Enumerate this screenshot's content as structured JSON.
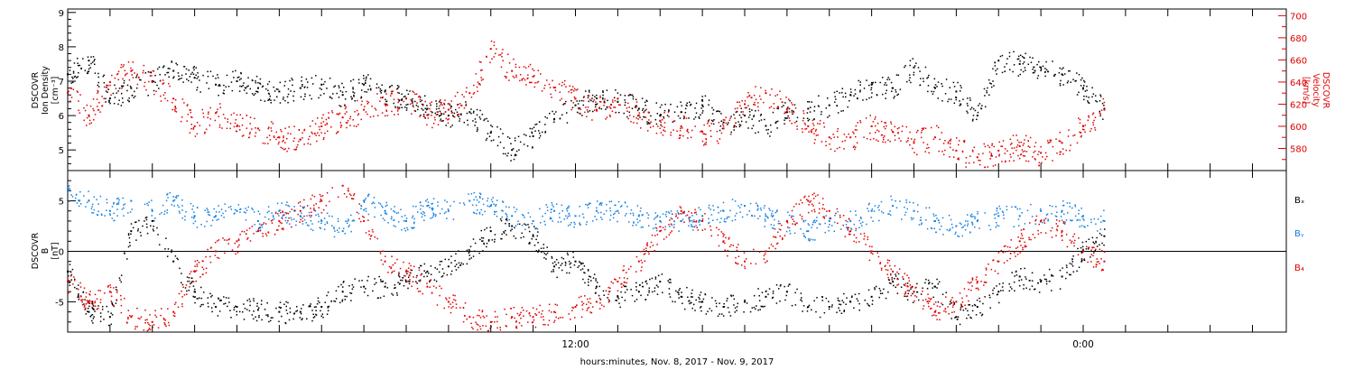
{
  "figure": {
    "xaxis_title": "hours:minutes, Nov.  8, 2017 - Nov.  9, 2017",
    "colors": {
      "black": "#000000",
      "red": "#e00000",
      "blue": "#1480e0"
    },
    "panels": {
      "top": {
        "left_label": [
          "DSCOVR",
          "Ion Density",
          "[cm⁻³]"
        ],
        "right_label": [
          "DSCOVR",
          "Velocity",
          "[km/s]"
        ]
      },
      "bottom": {
        "left_label": [
          "DSCOVR",
          "B",
          "[nT]"
        ],
        "legend": [
          "Bₓ",
          "Bᵧ",
          "B₄"
        ]
      }
    }
  },
  "chart_data": [
    {
      "type": "scatter",
      "title": "",
      "xlabel": "hours:minutes, Nov.  8, 2017 - Nov.  9, 2017",
      "x_unit": "hours since 2017-11-08 00:00",
      "xlim": [
        0,
        28.8
      ],
      "x_ticks": [
        {
          "value": 12,
          "label": "12:00"
        },
        {
          "value": 24,
          "label": "0:00"
        }
      ],
      "ylabel": "DSCOVR Ion Density [cm⁻³]",
      "ylim": [
        4.4,
        9.1
      ],
      "y_ticks": [
        5,
        6,
        7,
        8,
        9
      ],
      "y2label": "DSCOVR Velocity [km/s]",
      "y2lim": [
        560,
        706
      ],
      "y2_ticks": [
        580,
        600,
        620,
        640,
        660,
        680,
        700
      ],
      "series": [
        {
          "name": "",
          "axis": "left",
          "color": "#000000",
          "x": [
            0,
            0.5,
            1.0,
            1.5,
            2.0,
            2.5,
            3.0,
            3.5,
            4.0,
            4.5,
            5.0,
            5.5,
            6.0,
            6.5,
            7.0,
            7.5,
            8.0,
            8.5,
            9.0,
            9.5,
            10.0,
            10.5,
            11.0,
            11.5,
            12.0,
            12.5,
            13.0,
            13.5,
            14.0,
            14.5,
            15.0,
            15.5,
            16.0,
            16.5,
            17.0,
            17.5,
            18.0,
            18.5,
            19.0,
            19.5,
            20.0,
            20.5,
            21.0,
            21.5,
            22.0,
            22.5,
            23.0,
            23.5,
            24.0,
            24.5
          ],
          "values": [
            7.2,
            7.6,
            6.5,
            6.8,
            7.0,
            7.3,
            7.1,
            6.9,
            7.0,
            6.8,
            6.7,
            6.8,
            6.9,
            6.6,
            6.9,
            6.7,
            6.5,
            6.2,
            6.0,
            6.1,
            5.5,
            5.0,
            5.4,
            5.9,
            6.3,
            6.5,
            6.4,
            6.2,
            6.0,
            6.1,
            6.3,
            5.8,
            6.0,
            5.7,
            6.1,
            6.2,
            6.3,
            6.6,
            6.9,
            6.8,
            7.4,
            6.8,
            6.7,
            6.0,
            7.6,
            7.5,
            7.4,
            7.2,
            6.8,
            6.2
          ]
        },
        {
          "name": "",
          "axis": "right",
          "color": "#e00000",
          "x": [
            0,
            0.5,
            1.0,
            1.5,
            2.0,
            2.5,
            3.0,
            3.5,
            4.0,
            4.5,
            5.0,
            5.5,
            6.0,
            6.5,
            7.0,
            7.5,
            8.0,
            8.5,
            9.0,
            9.5,
            10.0,
            10.5,
            11.0,
            11.5,
            12.0,
            12.5,
            13.0,
            13.5,
            14.0,
            14.5,
            15.0,
            15.5,
            16.0,
            16.5,
            17.0,
            17.5,
            18.0,
            18.5,
            19.0,
            19.5,
            20.0,
            20.5,
            21.0,
            21.5,
            22.0,
            22.5,
            23.0,
            23.5,
            24.0,
            24.5
          ],
          "values": [
            630,
            610,
            640,
            650,
            640,
            625,
            600,
            612,
            600,
            598,
            590,
            588,
            600,
            608,
            615,
            620,
            625,
            610,
            615,
            630,
            670,
            650,
            645,
            635,
            625,
            615,
            625,
            610,
            605,
            600,
            595,
            598,
            620,
            630,
            615,
            600,
            590,
            590,
            600,
            595,
            585,
            590,
            578,
            572,
            578,
            582,
            576,
            585,
            600,
            615
          ]
        }
      ]
    },
    {
      "type": "scatter",
      "title": "",
      "xlabel": "hours:minutes, Nov.  8, 2017 - Nov.  9, 2017",
      "x_unit": "hours since 2017-11-08 00:00",
      "xlim": [
        0,
        28.8
      ],
      "x_ticks": [
        {
          "value": 12,
          "label": "12:00"
        },
        {
          "value": 24,
          "label": "0:00"
        }
      ],
      "ylabel": "DSCOVR B [nT]",
      "ylim": [
        -8,
        8
      ],
      "y_ticks": [
        -5,
        0,
        5
      ],
      "zero_line": true,
      "series": [
        {
          "name": "Bₓ",
          "color": "#000000",
          "x": [
            0,
            0.5,
            1.0,
            1.5,
            2.0,
            2.5,
            3.0,
            3.5,
            4.0,
            4.5,
            5.0,
            5.5,
            6.0,
            6.5,
            7.0,
            7.5,
            8.0,
            8.5,
            9.0,
            9.5,
            10.0,
            10.5,
            11.0,
            11.5,
            12.0,
            12.5,
            13.0,
            13.5,
            14.0,
            14.5,
            15.0,
            15.5,
            16.0,
            16.5,
            17.0,
            17.5,
            18.0,
            18.5,
            19.0,
            19.5,
            20.0,
            20.5,
            21.0,
            21.5,
            22.0,
            22.5,
            23.0,
            23.5,
            24.0,
            24.5
          ],
          "values": [
            -2,
            -6,
            -6.5,
            2,
            3,
            -1,
            -4,
            -5.5,
            -5.5,
            -5.8,
            -6,
            -6,
            -5.5,
            -4,
            -3.5,
            -3.5,
            -3,
            -2,
            -1.5,
            0,
            2,
            2.5,
            1.5,
            -1.5,
            -1,
            -3.5,
            -4.5,
            -4,
            -3,
            -4.5,
            -5,
            -5.5,
            -5,
            -4.5,
            -4,
            -5.5,
            -5.5,
            -5,
            -4.5,
            -3,
            -4,
            -3.5,
            -6.5,
            -5.5,
            -4,
            -2.5,
            -3,
            -2.5,
            0,
            1.5
          ]
        },
        {
          "name": "Bᵧ",
          "color": "#1480e0",
          "x": [
            0,
            0.5,
            1.0,
            1.5,
            2.0,
            2.5,
            3.0,
            3.5,
            4.0,
            4.5,
            5.0,
            5.5,
            6.0,
            6.5,
            7.0,
            7.5,
            8.0,
            8.5,
            9.0,
            9.5,
            10.0,
            10.5,
            11.0,
            11.5,
            12.0,
            12.5,
            13.0,
            13.5,
            14.0,
            14.5,
            15.0,
            15.5,
            16.0,
            16.5,
            17.0,
            17.5,
            18.0,
            18.5,
            19.0,
            19.5,
            20.0,
            20.5,
            21.0,
            21.5,
            22.0,
            22.5,
            23.0,
            23.5,
            24.0,
            24.5
          ],
          "values": [
            6,
            5,
            4,
            5,
            4,
            5,
            3.5,
            3.5,
            4,
            3,
            4,
            3.5,
            3,
            2,
            5,
            4,
            3,
            4.5,
            4,
            5,
            4.5,
            3.5,
            3,
            4,
            3.5,
            4,
            4,
            3.5,
            3,
            3,
            3.5,
            4,
            4.5,
            3.5,
            3,
            2,
            3,
            3,
            4,
            4.5,
            4,
            3,
            2.5,
            3,
            3.5,
            3.5,
            4,
            4,
            3.5,
            3
          ]
        },
        {
          "name": "B₄",
          "color": "#e00000",
          "x": [
            0,
            0.5,
            1.0,
            1.5,
            2.0,
            2.5,
            3.0,
            3.5,
            4.0,
            4.5,
            5.0,
            5.5,
            6.0,
            6.5,
            7.0,
            7.5,
            8.0,
            8.5,
            9.0,
            9.5,
            10.0,
            10.5,
            11.0,
            11.5,
            12.0,
            12.5,
            13.0,
            13.5,
            14.0,
            14.5,
            15.0,
            15.5,
            16.0,
            16.5,
            17.0,
            17.5,
            18.0,
            18.5,
            19.0,
            19.5,
            20.0,
            20.5,
            21.0,
            21.5,
            22.0,
            22.5,
            23.0,
            23.5,
            24.0,
            24.5
          ],
          "values": [
            -3,
            -5,
            -4,
            -6.5,
            -7,
            -6,
            -2,
            0,
            1,
            2,
            3,
            4,
            5,
            6.5,
            3,
            -1,
            -2,
            -3.5,
            -5,
            -6.5,
            -7,
            -6.5,
            -6.5,
            -6,
            -5.5,
            -5,
            -3,
            -1,
            2,
            4,
            3,
            1,
            -1,
            0,
            3,
            5,
            4,
            2,
            0,
            -2,
            -4,
            -6,
            -5,
            -3,
            -1,
            1,
            3,
            2,
            0,
            -1
          ]
        }
      ]
    }
  ]
}
